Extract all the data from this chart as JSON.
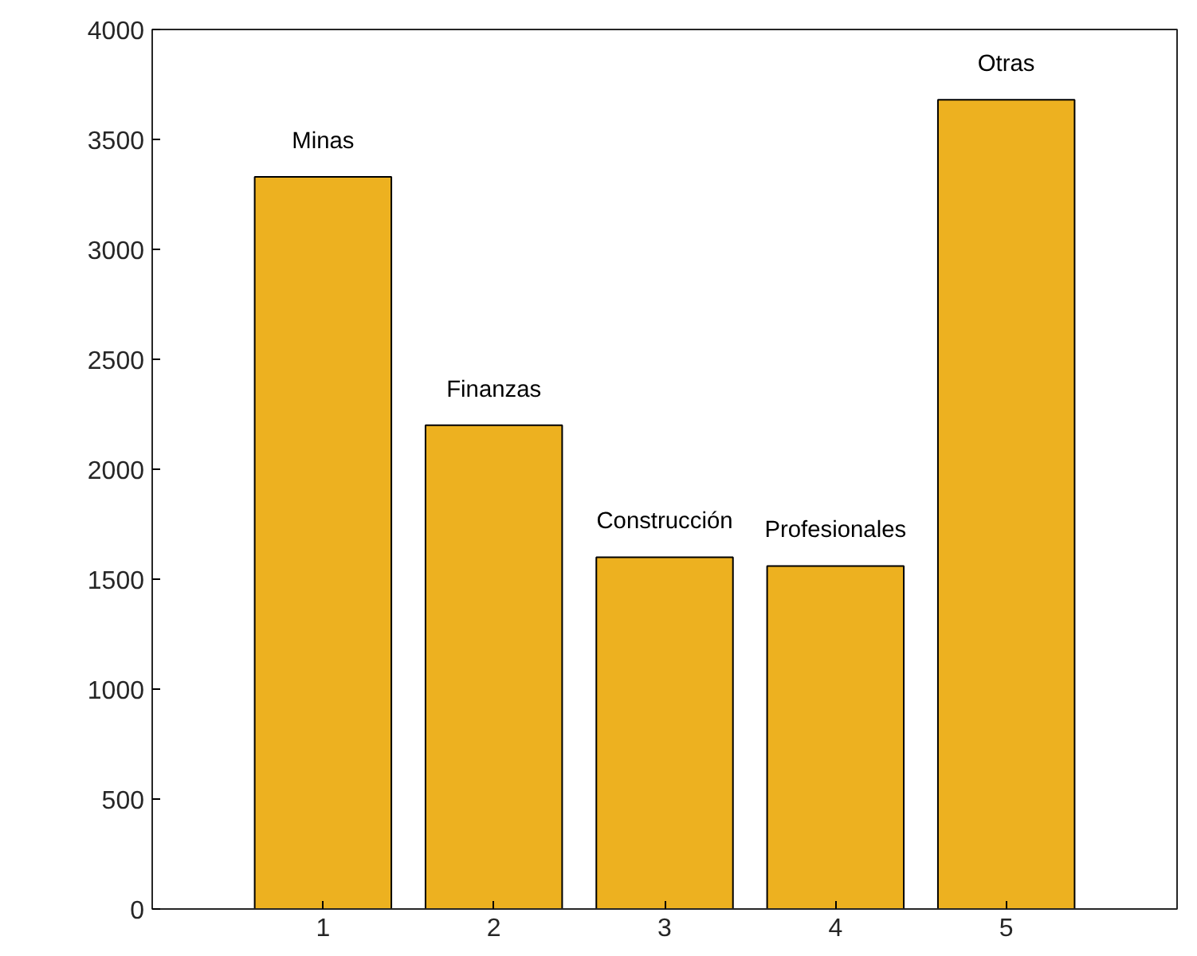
{
  "chart_data": {
    "type": "bar",
    "x": [
      1,
      2,
      3,
      4,
      5
    ],
    "values": [
      3330,
      2200,
      1600,
      1560,
      3680
    ],
    "color": "#edb120",
    "xlim": [
      0,
      6
    ],
    "ylim": [
      0,
      4000
    ],
    "xticks": [
      1,
      2,
      3,
      4,
      5
    ],
    "yticks": [
      0,
      500,
      1000,
      1500,
      2000,
      2500,
      3000,
      3500,
      4000
    ],
    "grid": false,
    "annotations": [
      {
        "text": "Minas",
        "x": 1,
        "y": 3330
      },
      {
        "text": "Finanzas",
        "x": 2,
        "y": 2200
      },
      {
        "text": "Construcción",
        "x": 3,
        "y": 1600
      },
      {
        "text": "Profesionales",
        "x": 4,
        "y": 1560
      },
      {
        "text": "Otras",
        "x": 5,
        "y": 3680
      }
    ]
  }
}
